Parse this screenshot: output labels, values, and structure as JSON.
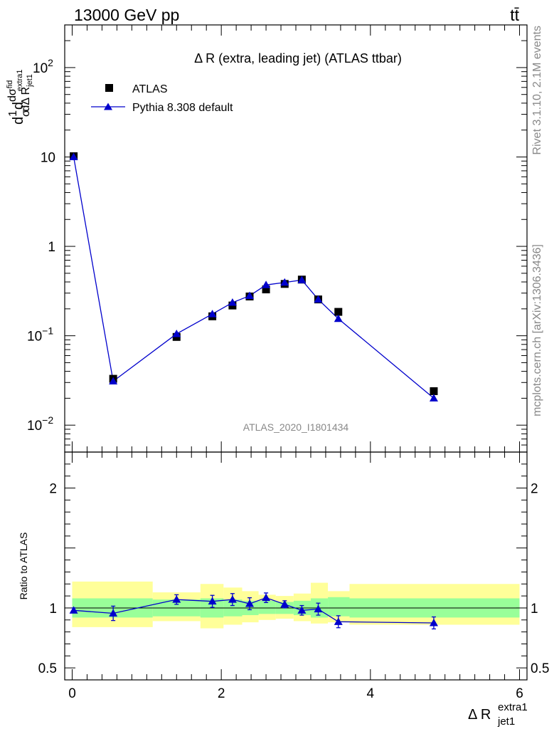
{
  "header": {
    "left": "13000 GeV pp",
    "right": "tt̄"
  },
  "side_texts": {
    "rivet": "Rivet 3.1.10,  2.1M events",
    "mcplots": "mcplots.cern.ch [arXiv:1306.3436]"
  },
  "colors": {
    "mc": "#0000cc",
    "data": "#000000",
    "band_inner": "#99ff99",
    "band_outer": "#ffff99"
  },
  "chart_data": [
    {
      "type": "scatter",
      "title": "Δ R (extra, leading jet) (ATLAS ttbar)",
      "watermark": "ATLAS_2020_I1801434",
      "ylabel": "dσ/dΔR (1/σ dσ^fid / dΔ R_jet1^extra1)",
      "ylabel_parts": {
        "prefix": "d",
        "one": "1",
        "sigma": "σ",
        "d": "d",
        "dsig": "dσ",
        "fid": "fid",
        "dDR": "dΔ R",
        "sub": "jet1",
        "sup": "extra1"
      },
      "yscale": "log",
      "ylim": [
        0.005,
        300
      ],
      "xlim": [
        -0.1,
        6.1
      ],
      "yticks": [
        {
          "value": 0.01,
          "base": "10",
          "exp": "−2"
        },
        {
          "value": 0.1,
          "base": "10",
          "exp": "−1"
        },
        {
          "value": 1,
          "base": "1",
          "exp": ""
        },
        {
          "value": 10,
          "base": "10",
          "exp": ""
        },
        {
          "value": 100,
          "base": "10",
          "exp": "2"
        }
      ],
      "legend": {
        "placement": "top-left",
        "entries": [
          "ATLAS",
          "Pythia 8.308 default"
        ]
      },
      "series": [
        {
          "name": "ATLAS",
          "marker": "square",
          "x": [
            0.02,
            0.55,
            1.4,
            1.88,
            2.15,
            2.38,
            2.6,
            2.85,
            3.08,
            3.3,
            3.57,
            4.85
          ],
          "values": [
            10.2,
            0.033,
            0.097,
            0.165,
            0.218,
            0.275,
            0.33,
            0.38,
            0.425,
            0.255,
            0.185,
            0.024
          ]
        },
        {
          "name": "Pythia 8.308 default",
          "marker": "triangle",
          "x": [
            0.02,
            0.55,
            1.4,
            1.88,
            2.15,
            2.38,
            2.6,
            2.85,
            3.08,
            3.3,
            3.57,
            4.85
          ],
          "values": [
            10.0,
            0.031,
            0.105,
            0.175,
            0.235,
            0.28,
            0.37,
            0.395,
            0.42,
            0.255,
            0.155,
            0.02
          ]
        }
      ]
    },
    {
      "type": "scatter",
      "ylabel": "Ratio to ATLAS",
      "xlabel": "Δ R",
      "xlabel_sub": "jet1",
      "xlabel_sup": "extra1",
      "ylim": [
        0.4,
        2.3
      ],
      "yticks": [
        {
          "value": 0.5,
          "label": "0.5"
        },
        {
          "value": 1,
          "label": "1"
        },
        {
          "value": 2,
          "label": "2"
        }
      ],
      "xticks": [
        {
          "value": 0,
          "label": "0"
        },
        {
          "value": 2,
          "label": "2"
        },
        {
          "value": 4,
          "label": "4"
        },
        {
          "value": 6,
          "label": "6"
        }
      ],
      "bands": [
        {
          "x0": 0.0,
          "x1": 1.08,
          "inner": [
            0.92,
            1.08
          ],
          "outer": [
            0.84,
            1.22
          ]
        },
        {
          "x0": 1.08,
          "x1": 1.72,
          "inner": [
            0.93,
            1.07
          ],
          "outer": [
            0.89,
            1.13
          ]
        },
        {
          "x0": 1.72,
          "x1": 2.03,
          "inner": [
            0.92,
            1.08
          ],
          "outer": [
            0.83,
            1.2
          ]
        },
        {
          "x0": 2.03,
          "x1": 2.28,
          "inner": [
            0.93,
            1.07
          ],
          "outer": [
            0.86,
            1.17
          ]
        },
        {
          "x0": 2.28,
          "x1": 2.5,
          "inner": [
            0.94,
            1.06
          ],
          "outer": [
            0.88,
            1.14
          ]
        },
        {
          "x0": 2.5,
          "x1": 2.73,
          "inner": [
            0.95,
            1.06
          ],
          "outer": [
            0.9,
            1.11
          ]
        },
        {
          "x0": 2.73,
          "x1": 2.97,
          "inner": [
            0.95,
            1.05
          ],
          "outer": [
            0.91,
            1.1
          ]
        },
        {
          "x0": 2.97,
          "x1": 3.2,
          "inner": [
            0.94,
            1.06
          ],
          "outer": [
            0.89,
            1.12
          ]
        },
        {
          "x0": 3.2,
          "x1": 3.43,
          "inner": [
            0.92,
            1.08
          ],
          "outer": [
            0.87,
            1.21
          ]
        },
        {
          "x0": 3.43,
          "x1": 3.72,
          "inner": [
            0.93,
            1.09
          ],
          "outer": [
            0.88,
            1.14
          ]
        },
        {
          "x0": 3.72,
          "x1": 6.0,
          "inner": [
            0.92,
            1.08
          ],
          "outer": [
            0.86,
            1.2
          ]
        }
      ],
      "series": [
        {
          "name": "Pythia 8.308 default",
          "marker": "triangle",
          "x": [
            0.02,
            0.55,
            1.4,
            1.88,
            2.15,
            2.38,
            2.6,
            2.85,
            3.08,
            3.3,
            3.57,
            4.85
          ],
          "values": [
            0.98,
            0.955,
            1.07,
            1.055,
            1.07,
            1.035,
            1.085,
            1.03,
            0.98,
            0.99,
            0.885,
            0.875
          ],
          "err": [
            0.02,
            0.06,
            0.04,
            0.05,
            0.05,
            0.05,
            0.04,
            0.03,
            0.04,
            0.05,
            0.05,
            0.05
          ]
        }
      ]
    }
  ]
}
